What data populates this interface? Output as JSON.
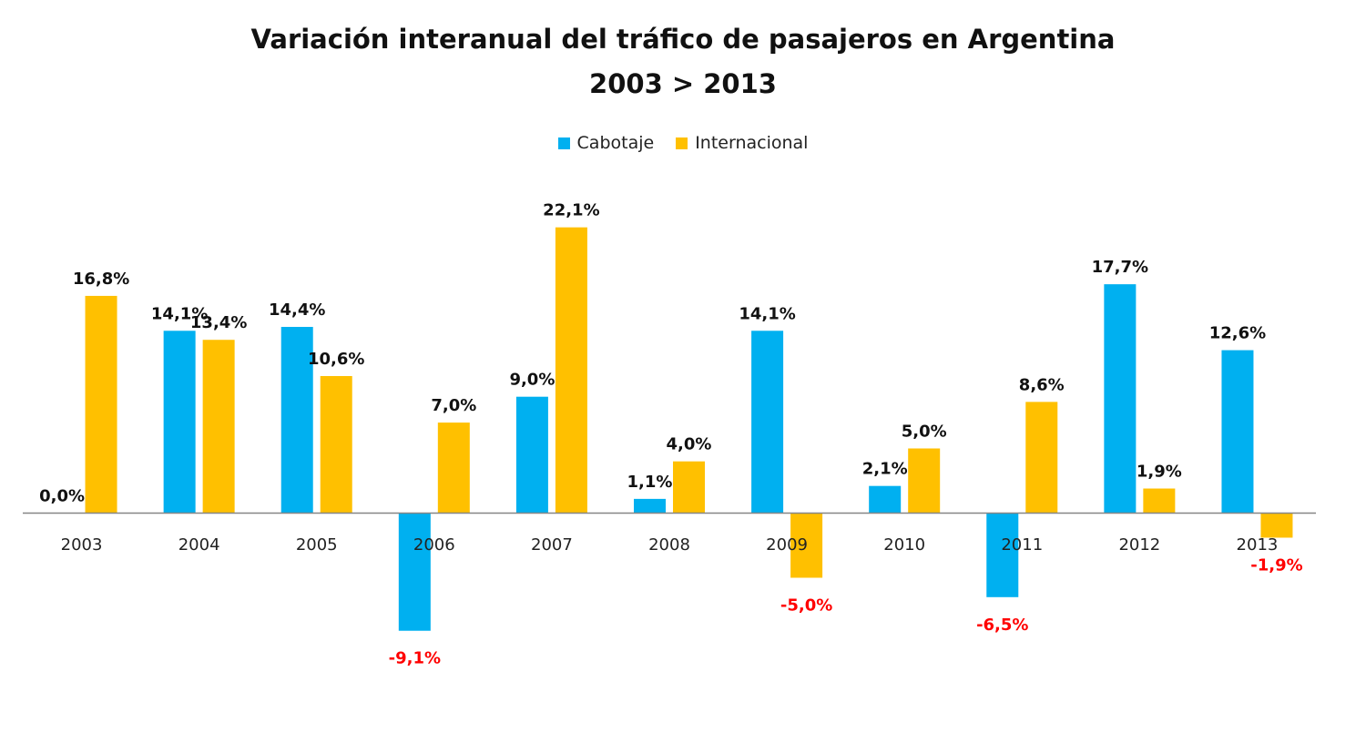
{
  "chart_data": {
    "type": "bar",
    "title": "Variación interanual del tráfico de pasajeros en Argentina",
    "subtitle": "2003 > 2013",
    "categories": [
      "2003",
      "2004",
      "2005",
      "2006",
      "2007",
      "2008",
      "2009",
      "2010",
      "2011",
      "2012",
      "2013"
    ],
    "series": [
      {
        "name": "Cabotaje",
        "color": "#00B0F0",
        "values": [
          0.0,
          14.1,
          14.4,
          -9.1,
          9.0,
          1.1,
          14.1,
          2.1,
          -6.5,
          17.7,
          12.6
        ],
        "labels": [
          "0,0%",
          "14,1%",
          "14,4%",
          "-9,1%",
          "9,0%",
          "1,1%",
          "14,1%",
          "2,1%",
          "-6,5%",
          "17,7%",
          "12,6%"
        ]
      },
      {
        "name": "Internacional",
        "color": "#FFC000",
        "values": [
          16.8,
          13.4,
          10.6,
          7.0,
          22.1,
          4.0,
          -5.0,
          5.0,
          8.6,
          1.9,
          -1.9
        ],
        "labels": [
          "16,8%",
          "13,4%",
          "10,6%",
          "7,0%",
          "22,1%",
          "4,0%",
          "-5,0%",
          "5,0%",
          "8,6%",
          "1,9%",
          "-1,9%"
        ]
      }
    ],
    "ylim": [
      -12,
      24
    ],
    "legend_position": "top",
    "grid": false,
    "positive_label_color": "#111111",
    "negative_label_color": "#FF0000"
  }
}
